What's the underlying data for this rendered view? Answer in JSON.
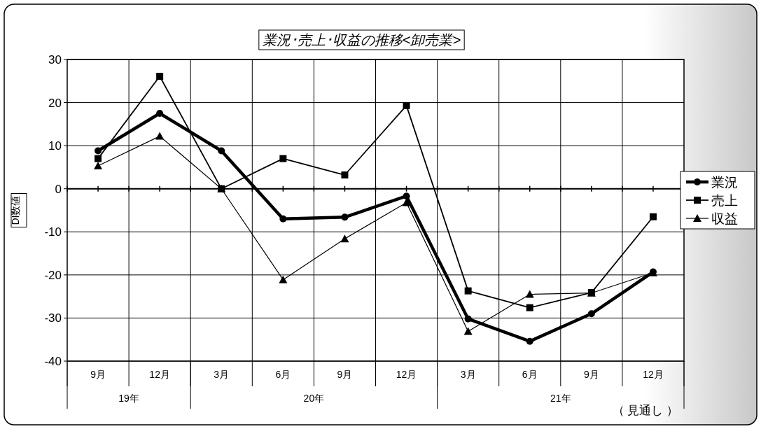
{
  "chart_data": {
    "type": "line",
    "title": "業況･売上･収益の推移<卸売業>",
    "ylabel": "DI数値",
    "categories": [
      "9月",
      "12月",
      "3月",
      "6月",
      "9月",
      "12月",
      "3月",
      "6月",
      "9月",
      "12月"
    ],
    "annotations": [
      "19年",
      "20年",
      "21年",
      "（ 見通し ）"
    ],
    "series": [
      {
        "name": "業況",
        "color": "#000000",
        "marker": "circle",
        "values": [
          8.8,
          17.5,
          8.8,
          -7.0,
          -6.6,
          -1.7,
          -30.2,
          -35.4,
          -29.0,
          -19.3
        ]
      },
      {
        "name": "売上",
        "color": "#000000",
        "marker": "square",
        "values": [
          7.0,
          26.1,
          0,
          7.0,
          3.2,
          19.3,
          -23.7,
          -27.6,
          -24.1,
          -6.5
        ]
      },
      {
        "name": "収益",
        "color": "#000000",
        "marker": "triangle",
        "values": [
          5.3,
          12.2,
          0,
          -21.1,
          -11.6,
          -3.2,
          -33.1,
          -24.5,
          -24.2,
          -19.5
        ]
      }
    ],
    "ylim": [
      -40,
      30
    ],
    "yticks": [
      -40,
      -30,
      -20,
      -10,
      0,
      10,
      20,
      30
    ],
    "grid": true,
    "legend": "right"
  }
}
